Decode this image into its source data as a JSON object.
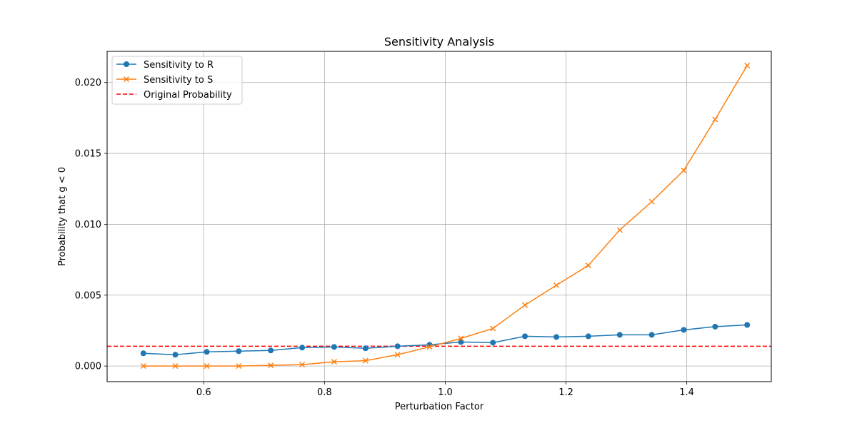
{
  "chart_data": {
    "type": "line",
    "title": "Sensitivity Analysis",
    "xlabel": "Perturbation Factor",
    "ylabel": "Probability that g < 0",
    "xlim": [
      0.44,
      1.54
    ],
    "ylim": [
      -0.0011,
      0.0222
    ],
    "xticks": [
      0.6,
      0.8,
      1.0,
      1.2,
      1.4
    ],
    "xtick_labels": [
      "0.6",
      "0.8",
      "1.0",
      "1.2",
      "1.4"
    ],
    "yticks": [
      0.0,
      0.005,
      0.01,
      0.015,
      0.02
    ],
    "ytick_labels": [
      "0.000",
      "0.005",
      "0.010",
      "0.015",
      "0.020"
    ],
    "grid": true,
    "legend_position": "top-left",
    "x": [
      0.5,
      0.553,
      0.605,
      0.658,
      0.711,
      0.763,
      0.816,
      0.868,
      0.921,
      0.974,
      1.026,
      1.079,
      1.132,
      1.184,
      1.237,
      1.289,
      1.342,
      1.395,
      1.447,
      1.5
    ],
    "series": [
      {
        "name": "Sensitivity to R",
        "color": "#1f77b4",
        "marker": "circle",
        "values": [
          0.0009,
          0.0008,
          0.001,
          0.00105,
          0.0011,
          0.0013,
          0.00135,
          0.00125,
          0.0014,
          0.0015,
          0.0017,
          0.00165,
          0.0021,
          0.00205,
          0.0021,
          0.0022,
          0.0022,
          0.00255,
          0.00278,
          0.0029
        ]
      },
      {
        "name": "Sensitivity to S",
        "color": "#ff7f0e",
        "marker": "x",
        "values": [
          0.0,
          0.0,
          0.0,
          0.0,
          5e-05,
          0.0001,
          0.0003,
          0.00038,
          0.0008,
          0.00135,
          0.00195,
          0.00265,
          0.0043,
          0.0057,
          0.0071,
          0.0096,
          0.0116,
          0.0138,
          0.0174,
          0.0212
        ]
      }
    ],
    "reference_line": {
      "name": "Original Probability",
      "value": 0.0014,
      "color": "#ff0000",
      "style": "dashed"
    }
  }
}
